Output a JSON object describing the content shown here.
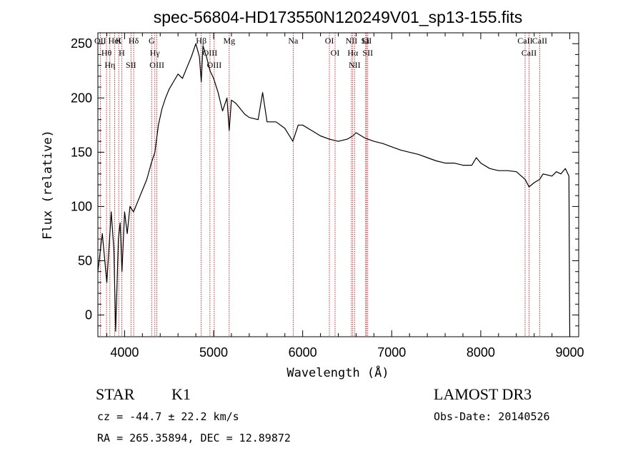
{
  "chart_data": {
    "type": "line",
    "title": "spec-56804-HD173550N120249V01_sp13-155.fits",
    "xlabel": "Wavelength (Å)",
    "ylabel": "Flux (relative)",
    "xlim": [
      3700,
      9100
    ],
    "ylim": [
      -20,
      260
    ],
    "grid": false,
    "x_ticks": [
      4000,
      5000,
      6000,
      7000,
      8000,
      9000
    ],
    "y_ticks": [
      0,
      50,
      100,
      150,
      200,
      250
    ],
    "spectrum": {
      "x": [
        3700,
        3750,
        3800,
        3850,
        3880,
        3900,
        3930,
        3950,
        3970,
        4000,
        4030,
        4060,
        4100,
        4150,
        4200,
        4250,
        4300,
        4340,
        4380,
        4420,
        4460,
        4500,
        4550,
        4600,
        4650,
        4700,
        4750,
        4800,
        4840,
        4861,
        4880,
        4920,
        4960,
        5000,
        5050,
        5100,
        5150,
        5175,
        5200,
        5250,
        5300,
        5350,
        5400,
        5500,
        5550,
        5600,
        5700,
        5800,
        5890,
        5950,
        6000,
        6100,
        6200,
        6300,
        6400,
        6500,
        6563,
        6600,
        6700,
        6800,
        6900,
        7000,
        7100,
        7200,
        7300,
        7400,
        7500,
        7600,
        7700,
        7800,
        7900,
        7950,
        8000,
        8100,
        8200,
        8300,
        8400,
        8498,
        8542,
        8600,
        8662,
        8700,
        8800,
        8850,
        8900,
        8950,
        8990,
        9000
      ],
      "y": [
        40,
        75,
        30,
        95,
        60,
        -15,
        70,
        85,
        40,
        95,
        75,
        100,
        95,
        105,
        115,
        125,
        140,
        150,
        175,
        190,
        200,
        208,
        215,
        222,
        218,
        228,
        238,
        250,
        238,
        215,
        248,
        238,
        225,
        218,
        205,
        188,
        200,
        170,
        198,
        195,
        190,
        185,
        182,
        180,
        205,
        178,
        178,
        172,
        160,
        175,
        175,
        170,
        165,
        162,
        160,
        162,
        165,
        168,
        163,
        160,
        158,
        155,
        152,
        150,
        148,
        145,
        142,
        140,
        140,
        138,
        138,
        145,
        140,
        135,
        133,
        133,
        132,
        125,
        118,
        122,
        125,
        130,
        128,
        132,
        130,
        135,
        128,
        -20
      ]
    },
    "spectral_lines": [
      {
        "label": "OII",
        "x": 3727
      },
      {
        "label": "Hθ",
        "x": 3797
      },
      {
        "label": "Hη",
        "x": 3835
      },
      {
        "label": "HeI",
        "x": 3889
      },
      {
        "label": "K",
        "x": 3934
      },
      {
        "label": "H",
        "x": 3968
      },
      {
        "label": "SII",
        "x": 4072
      },
      {
        "label": "Hδ",
        "x": 4102
      },
      {
        "label": "G",
        "x": 4304
      },
      {
        "label": "Hγ",
        "x": 4340
      },
      {
        "label": "OIII",
        "x": 4363
      },
      {
        "label": "Hβ",
        "x": 4861
      },
      {
        "label": "OIII",
        "x": 4959
      },
      {
        "label": "OIII",
        "x": 5007
      },
      {
        "label": "Mg",
        "x": 5175
      },
      {
        "label": "Na",
        "x": 5893
      },
      {
        "label": "OI",
        "x": 6300
      },
      {
        "label": "OI",
        "x": 6364
      },
      {
        "label": "NII",
        "x": 6548
      },
      {
        "label": "Hα",
        "x": 6563
      },
      {
        "label": "NII",
        "x": 6583
      },
      {
        "label": "Li",
        "x": 6708
      },
      {
        "label": "SII",
        "x": 6716
      },
      {
        "label": "SII",
        "x": 6731
      },
      {
        "label": "CaII",
        "x": 8498
      },
      {
        "label": "CaII",
        "x": 8542
      },
      {
        "label": "CaII",
        "x": 8662
      }
    ],
    "line_colors": {
      "spectrum": "#000000",
      "marker": "#c00000"
    }
  },
  "info": {
    "class": "STAR",
    "subclass": "K1",
    "survey": "LAMOST DR3",
    "cz": "cz = -44.7 ± 22.2 km/s",
    "obs_date": "Obs-Date: 20140526",
    "radec": "RA = 265.35894, DEC =  12.89872"
  }
}
